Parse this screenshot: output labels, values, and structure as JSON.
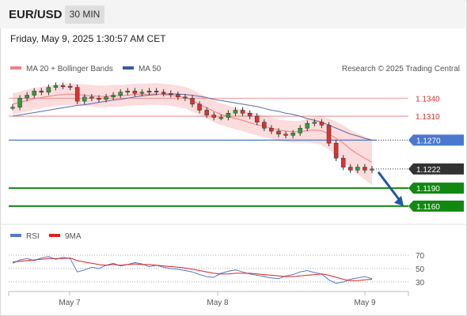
{
  "header": {
    "symbol": "EUR/USD",
    "timeframe": "30 MIN"
  },
  "timestamp": "Friday, May 9, 2025 1:30:57 AM CET",
  "copyright": "Research © 2025 Trading Central",
  "legend": {
    "ma20_bb": "MA 20 + Bollinger Bands",
    "ma50": "MA 50",
    "rsi": "RSI",
    "rsi_ma": "9MA"
  },
  "colors": {
    "ma20": "#f08080",
    "bb": "#fbd3d3",
    "ma50": "#5a6aa8",
    "resistance": "#e57373",
    "pivot": "#4a78d0",
    "support": "#118811",
    "current": "#333333",
    "forecast": "#1f5aa6",
    "rsi": "#5577cc",
    "rsi_ma": "#dd2222"
  },
  "chart_data": {
    "type": "line",
    "xlabels": [
      "May 7",
      "May 8",
      "May 9"
    ],
    "ylim": [
      1.1148,
      1.1372
    ],
    "levels": [
      {
        "label": "1.1340",
        "value": 1.134,
        "kind": "resistance"
      },
      {
        "label": "1.1310",
        "value": 1.131,
        "kind": "resistance"
      },
      {
        "label": "1.1270",
        "value": 1.127,
        "kind": "pivot"
      },
      {
        "label": "1.1222",
        "value": 1.1222,
        "kind": "current"
      },
      {
        "label": "1.1190",
        "value": 1.119,
        "kind": "support"
      },
      {
        "label": "1.1160",
        "value": 1.116,
        "kind": "support"
      }
    ],
    "price_series": [
      1.1325,
      1.134,
      1.1345,
      1.1352,
      1.135,
      1.1358,
      1.1361,
      1.136,
      1.1358,
      1.1335,
      1.1342,
      1.134,
      1.1338,
      1.1342,
      1.1345,
      1.135,
      1.1352,
      1.1348,
      1.135,
      1.1352,
      1.135,
      1.1348,
      1.1346,
      1.1342,
      1.134,
      1.133,
      1.132,
      1.1312,
      1.1308,
      1.1308,
      1.1315,
      1.132,
      1.1315,
      1.131,
      1.13,
      1.129,
      1.1285,
      1.128,
      1.1278,
      1.1282,
      1.129,
      1.1298,
      1.13,
      1.1295,
      1.1265,
      1.124,
      1.1225,
      1.122,
      1.1225,
      1.122,
      1.1222
    ],
    "ma20_series": [
      1.133,
      1.1333,
      1.1336,
      1.1339,
      1.1341,
      1.1343,
      1.1345,
      1.1346,
      1.1347,
      1.1346,
      1.1345,
      1.1344,
      1.1343,
      1.1343,
      1.1344,
      1.1344,
      1.1345,
      1.1346,
      1.1346,
      1.1347,
      1.1347,
      1.1346,
      1.1345,
      1.1343,
      1.1341,
      1.1336,
      1.133,
      1.1324,
      1.1318,
      1.1313,
      1.131,
      1.1306,
      1.1303,
      1.1299,
      1.1296,
      1.1293,
      1.129,
      1.1287,
      1.1285,
      1.1284,
      1.1284,
      1.1286,
      1.1287,
      1.1286,
      1.128,
      1.1273,
      1.1265,
      1.1255,
      1.1247,
      1.124,
      1.1233
    ],
    "ma50_series": [
      1.131,
      1.1312,
      1.1314,
      1.1316,
      1.1318,
      1.132,
      1.1322,
      1.1324,
      1.1326,
      1.1328,
      1.1329,
      1.1331,
      1.1333,
      1.1335,
      1.1337,
      1.1338,
      1.134,
      1.1342,
      1.1344,
      1.1345,
      1.1346,
      1.1347,
      1.1347,
      1.1347,
      1.1346,
      1.1345,
      1.1343,
      1.1341,
      1.1338,
      1.1336,
      1.1334,
      1.1332,
      1.133,
      1.1328,
      1.1326,
      1.1323,
      1.132,
      1.1318,
      1.1315,
      1.1313,
      1.131,
      1.1306,
      1.1303,
      1.13,
      1.1295,
      1.129,
      1.1285,
      1.128,
      1.1277,
      1.1273,
      1.127
    ],
    "forecast": {
      "from": 1.1222,
      "to": 1.116
    },
    "rsi": {
      "levels": [
        70,
        50,
        30
      ],
      "ylim": [
        18,
        82
      ],
      "rsi_series": [
        58,
        63,
        65,
        62,
        66,
        68,
        64,
        67,
        65,
        45,
        48,
        52,
        50,
        55,
        58,
        54,
        56,
        59,
        57,
        53,
        55,
        52,
        50,
        49,
        47,
        45,
        41,
        38,
        37,
        43,
        46,
        48,
        45,
        42,
        40,
        38,
        36,
        35,
        39,
        41,
        45,
        47,
        44,
        42,
        33,
        28,
        30,
        34,
        36,
        38,
        35
      ],
      "ma_series": [
        60,
        61,
        62,
        63,
        64,
        65,
        65,
        65,
        66,
        62,
        60,
        58,
        56,
        55,
        56,
        55,
        56,
        57,
        56,
        56,
        55,
        54,
        53,
        52,
        51,
        49,
        47,
        45,
        43,
        42,
        42,
        43,
        43,
        43,
        42,
        41,
        40,
        39,
        38,
        38,
        39,
        40,
        41,
        42,
        40,
        37,
        34,
        32,
        32,
        33,
        34
      ]
    }
  }
}
